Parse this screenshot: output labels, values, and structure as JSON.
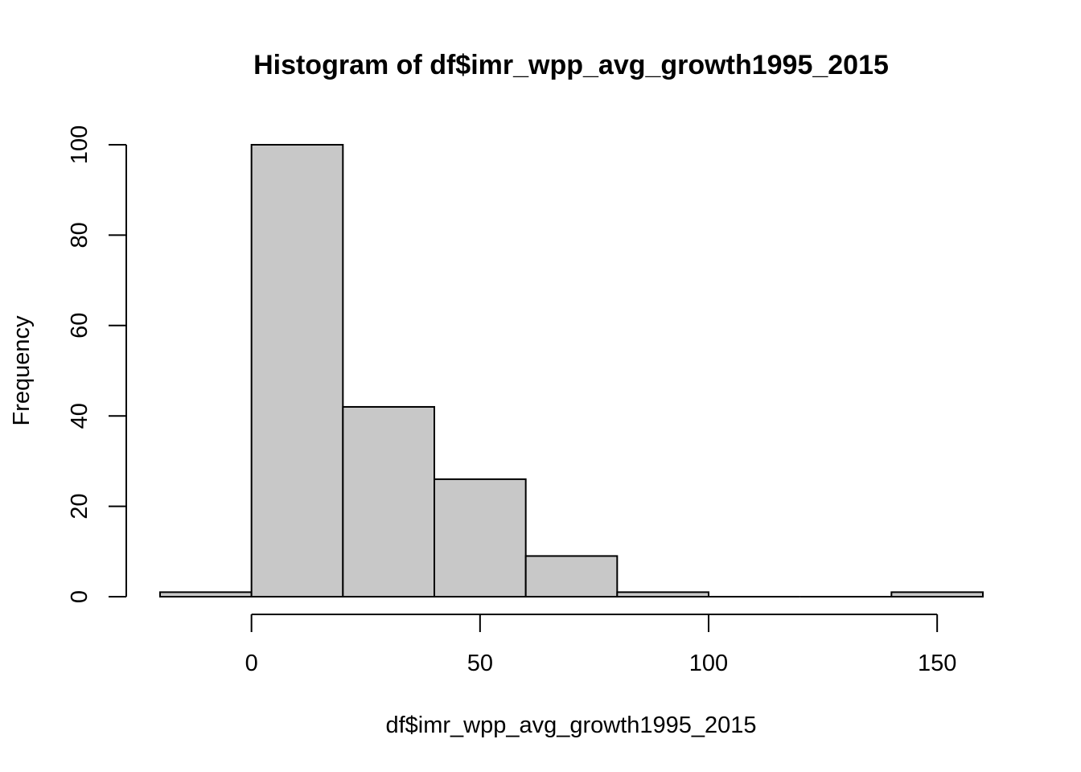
{
  "chart_data": {
    "type": "bar",
    "title": "Histogram of df$imr_wpp_avg_growth1995_2015",
    "xlabel": "df$imr_wpp_avg_growth1995_2015",
    "ylabel": "Frequency",
    "bins": [
      {
        "x0": -20,
        "x1": 0,
        "count": 1
      },
      {
        "x0": 0,
        "x1": 20,
        "count": 100
      },
      {
        "x0": 20,
        "x1": 40,
        "count": 42
      },
      {
        "x0": 40,
        "x1": 60,
        "count": 26
      },
      {
        "x0": 60,
        "x1": 80,
        "count": 9
      },
      {
        "x0": 80,
        "x1": 100,
        "count": 1
      },
      {
        "x0": 100,
        "x1": 120,
        "count": 0
      },
      {
        "x0": 120,
        "x1": 140,
        "count": 0
      },
      {
        "x0": 140,
        "x1": 160,
        "count": 1
      }
    ],
    "xlim": [
      -20,
      160
    ],
    "ylim": [
      0,
      100
    ],
    "xticks": [
      0,
      50,
      100,
      150
    ],
    "xtick_labels": [
      "0",
      "50",
      "100",
      "150"
    ],
    "yticks": [
      0,
      20,
      40,
      60,
      80,
      100
    ],
    "ytick_labels": [
      "0",
      "20",
      "40",
      "60",
      "80",
      "100"
    ],
    "grid": false,
    "legend": "none",
    "bar_color": "#c8c8c8",
    "edge_color": "#000000"
  }
}
